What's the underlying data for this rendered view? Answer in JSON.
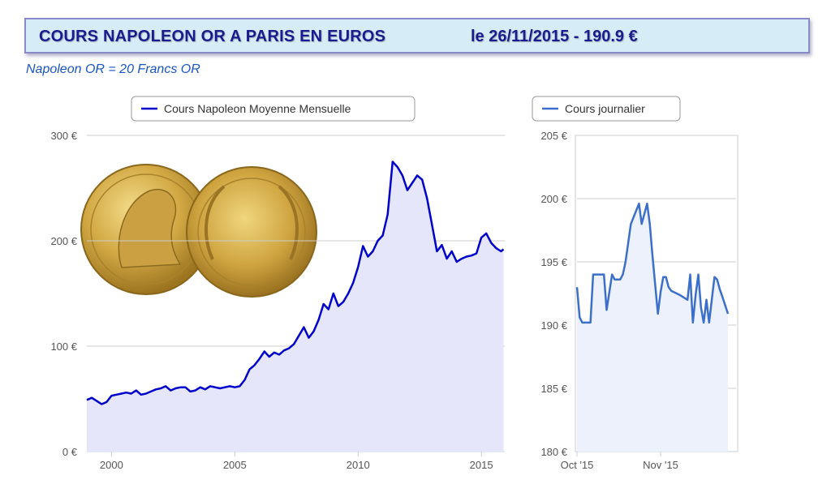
{
  "header": {
    "title": "COURS NAPOLEON OR A PARIS EN EUROS",
    "date_price": "le 26/11/2015 - 190.9 €",
    "subtitle": "Napoleon OR = 20 Francs OR"
  },
  "colors": {
    "banner_bg": "#d6ecf6",
    "main_line": "#0000cc",
    "main_fill": "#e6e6fb",
    "daily_line": "#3b6fc9",
    "daily_fill": "#edf1fb",
    "title_text": "#1b1b8f"
  },
  "chart_data": [
    {
      "type": "area",
      "legend": "Cours Napoleon Moyenne Mensuelle",
      "legend_position": "top-center",
      "grid": true,
      "ylim": [
        0,
        300
      ],
      "xlim": [
        1999.0,
        2015.95
      ],
      "y_ticks": [
        "0 €",
        "100 €",
        "200 €",
        "300 €"
      ],
      "y_tick_values": [
        0,
        100,
        200,
        300
      ],
      "x_ticks": [
        "2000",
        "2005",
        "2010",
        "2015"
      ],
      "x_tick_values": [
        2000,
        2005,
        2010,
        2015
      ],
      "x": [
        1999.0,
        1999.2,
        1999.4,
        1999.6,
        1999.8,
        2000.0,
        2000.2,
        2000.4,
        2000.6,
        2000.8,
        2001.0,
        2001.2,
        2001.4,
        2001.6,
        2001.8,
        2002.0,
        2002.2,
        2002.4,
        2002.6,
        2002.8,
        2003.0,
        2003.2,
        2003.4,
        2003.6,
        2003.8,
        2004.0,
        2004.2,
        2004.4,
        2004.6,
        2004.8,
        2005.0,
        2005.2,
        2005.4,
        2005.6,
        2005.8,
        2006.0,
        2006.2,
        2006.4,
        2006.6,
        2006.8,
        2007.0,
        2007.2,
        2007.4,
        2007.6,
        2007.8,
        2008.0,
        2008.2,
        2008.4,
        2008.6,
        2008.8,
        2009.0,
        2009.2,
        2009.4,
        2009.6,
        2009.8,
        2010.0,
        2010.2,
        2010.4,
        2010.6,
        2010.8,
        2011.0,
        2011.2,
        2011.4,
        2011.6,
        2011.8,
        2012.0,
        2012.2,
        2012.4,
        2012.6,
        2012.8,
        2013.0,
        2013.2,
        2013.4,
        2013.6,
        2013.8,
        2014.0,
        2014.2,
        2014.4,
        2014.6,
        2014.8,
        2015.0,
        2015.2,
        2015.4,
        2015.6,
        2015.8,
        2015.9
      ],
      "values": [
        49,
        51,
        48,
        45,
        47,
        53,
        54,
        55,
        56,
        55,
        58,
        54,
        55,
        57,
        59,
        60,
        62,
        58,
        60,
        61,
        61,
        57,
        58,
        61,
        59,
        62,
        61,
        60,
        61,
        62,
        61,
        62,
        68,
        78,
        82,
        88,
        95,
        90,
        94,
        92,
        96,
        98,
        102,
        110,
        118,
        108,
        114,
        125,
        140,
        135,
        150,
        138,
        142,
        150,
        160,
        175,
        195,
        185,
        190,
        200,
        205,
        225,
        275,
        270,
        262,
        248,
        255,
        262,
        258,
        240,
        215,
        190,
        196,
        183,
        190,
        180,
        183,
        185,
        186,
        188,
        203,
        207,
        198,
        193,
        190,
        192
      ]
    },
    {
      "type": "line",
      "legend": "Cours journalier",
      "legend_position": "top-center",
      "grid": true,
      "ylim": [
        180,
        205
      ],
      "xlim": [
        0,
        59
      ],
      "y_ticks": [
        "180 €",
        "185 €",
        "190 €",
        "195 €",
        "200 €",
        "205 €"
      ],
      "y_tick_values": [
        180,
        185,
        190,
        195,
        200,
        205
      ],
      "x_ticks": [
        "Oct '15",
        "Nov '15"
      ],
      "x_tick_values": [
        0,
        31
      ],
      "x": [
        0,
        1,
        2,
        3,
        5,
        6,
        7,
        10,
        11,
        13,
        14,
        15,
        16,
        17,
        18,
        20,
        23,
        24,
        26,
        27,
        28,
        30,
        31,
        32,
        33,
        34,
        35,
        36,
        38,
        41,
        42,
        43,
        44,
        45,
        46,
        47,
        48,
        49,
        51,
        52,
        53,
        54,
        56
      ],
      "values": [
        193,
        190.6,
        190.2,
        190.2,
        190.2,
        194,
        194,
        194,
        191.2,
        194,
        193.6,
        193.6,
        193.6,
        194,
        195,
        198,
        199.6,
        198,
        199.6,
        198,
        195.5,
        190.9,
        192.6,
        193.8,
        193.8,
        193,
        192.7,
        192.6,
        192.4,
        192,
        194,
        190.2,
        192.4,
        194,
        191.4,
        190.2,
        192,
        190.2,
        193.8,
        193.6,
        192.8,
        192.2,
        190.9
      ]
    }
  ]
}
